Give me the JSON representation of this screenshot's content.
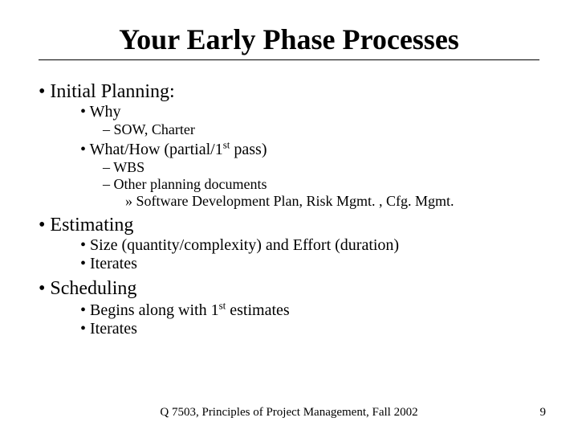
{
  "slide": {
    "title": "Your Early Phase Processes",
    "title_fontsize": 36,
    "body_font": "Times New Roman",
    "text_color": "#000000",
    "background_color": "#ffffff",
    "bullets": [
      {
        "text": "Initial Planning:",
        "children": [
          {
            "text": "Why",
            "children": [
              {
                "text": "SOW, Charter"
              }
            ]
          },
          {
            "text_html": "What/How (partial/1<sup>st</sup> pass)",
            "text": "What/How (partial/1st pass)",
            "children": [
              {
                "text": "WBS"
              },
              {
                "text": "Other planning documents",
                "children": [
                  {
                    "text": "Software Development Plan, Risk Mgmt. , Cfg. Mgmt."
                  }
                ]
              }
            ]
          }
        ]
      },
      {
        "text": "Estimating",
        "children": [
          {
            "text": "Size (quantity/complexity) and Effort (duration)"
          },
          {
            "text": "Iterates"
          }
        ]
      },
      {
        "text": "Scheduling",
        "children": [
          {
            "text_html": "Begins along with 1<sup>st</sup> estimates",
            "text": "Begins along with 1st estimates"
          },
          {
            "text": "Iterates"
          }
        ]
      }
    ],
    "footer": "Q 7503, Principles of Project Management, Fall 2002",
    "page_number": "9"
  }
}
